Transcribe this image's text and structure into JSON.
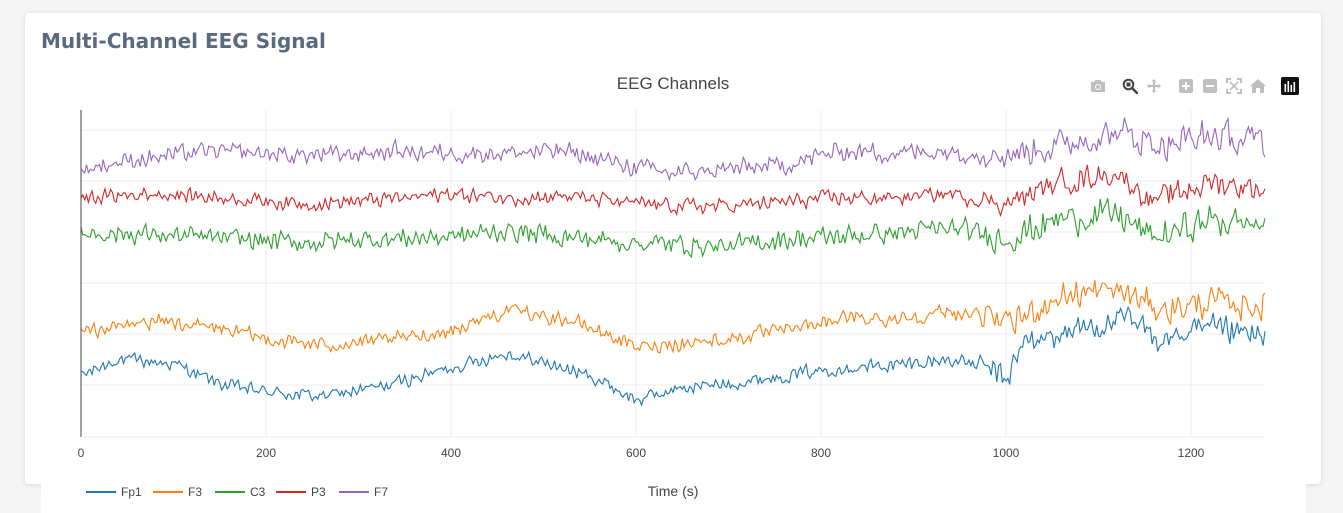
{
  "card": {
    "title": "Multi-Channel EEG Signal"
  },
  "modebar": {
    "buttons": [
      {
        "icon": "camera-icon",
        "label": "Download plot as a png"
      },
      {
        "icon": "zoom-icon",
        "label": "Zoom"
      },
      {
        "icon": "pan-icon",
        "label": "Pan"
      },
      {
        "icon": "zoom-in-icon",
        "label": "Zoom in"
      },
      {
        "icon": "zoom-out-icon",
        "label": "Zoom out"
      },
      {
        "icon": "autoscale-icon",
        "label": "Autoscale"
      },
      {
        "icon": "home-icon",
        "label": "Reset axes"
      },
      {
        "icon": "plotly-logo-icon",
        "label": "Produced with Plotly"
      }
    ]
  },
  "chart_data": {
    "type": "line",
    "title": "EEG Channels",
    "xlabel": "Time (s)",
    "ylabel": "",
    "xlim": [
      0,
      1280
    ],
    "x_ticks": [
      0,
      200,
      400,
      600,
      800,
      1000,
      1200
    ],
    "grid": true,
    "legend_placement": "bottom-left",
    "series": [
      {
        "name": "Fp1",
        "color": "#1f77b4",
        "trend": [
          [
            0,
            -4.4
          ],
          [
            40,
            -3.6
          ],
          [
            100,
            -3.8
          ],
          [
            150,
            -4.8
          ],
          [
            200,
            -5.2
          ],
          [
            260,
            -5.4
          ],
          [
            330,
            -4.9
          ],
          [
            400,
            -4.0
          ],
          [
            460,
            -3.3
          ],
          [
            520,
            -4.0
          ],
          [
            560,
            -4.6
          ],
          [
            600,
            -5.6
          ],
          [
            650,
            -5.0
          ],
          [
            700,
            -4.8
          ],
          [
            760,
            -4.4
          ],
          [
            820,
            -4.0
          ],
          [
            880,
            -3.9
          ],
          [
            940,
            -3.6
          ],
          [
            980,
            -4.0
          ],
          [
            1000,
            -4.6
          ],
          [
            1020,
            -2.8
          ],
          [
            1080,
            -2.1
          ],
          [
            1130,
            -1.7
          ],
          [
            1170,
            -2.6
          ],
          [
            1220,
            -2.2
          ],
          [
            1280,
            -2.6
          ]
        ],
        "amp": [
          [
            0,
            0.35
          ],
          [
            950,
            0.4
          ],
          [
            1000,
            0.75
          ],
          [
            1280,
            0.9
          ]
        ]
      },
      {
        "name": "F3",
        "color": "#ff7f0e",
        "trend": [
          [
            0,
            -2.3
          ],
          [
            80,
            -1.7
          ],
          [
            150,
            -2.1
          ],
          [
            200,
            -2.6
          ],
          [
            260,
            -2.9
          ],
          [
            330,
            -2.7
          ],
          [
            400,
            -2.2
          ],
          [
            460,
            -1.2
          ],
          [
            520,
            -1.6
          ],
          [
            560,
            -2.2
          ],
          [
            600,
            -3.0
          ],
          [
            650,
            -2.8
          ],
          [
            700,
            -2.6
          ],
          [
            760,
            -2.2
          ],
          [
            820,
            -1.6
          ],
          [
            880,
            -1.6
          ],
          [
            940,
            -1.3
          ],
          [
            980,
            -1.4
          ],
          [
            1000,
            -2.0
          ],
          [
            1060,
            -0.5
          ],
          [
            1120,
            -0.2
          ],
          [
            1170,
            -1.2
          ],
          [
            1220,
            -0.8
          ],
          [
            1280,
            -1.0
          ]
        ],
        "amp": [
          [
            0,
            0.4
          ],
          [
            950,
            0.45
          ],
          [
            1000,
            0.8
          ],
          [
            1280,
            0.9
          ]
        ]
      },
      {
        "name": "C3",
        "color": "#2ca02c",
        "trend": [
          [
            0,
            2.6
          ],
          [
            80,
            2.5
          ],
          [
            160,
            2.3
          ],
          [
            240,
            2.1
          ],
          [
            320,
            2.3
          ],
          [
            400,
            2.4
          ],
          [
            460,
            2.7
          ],
          [
            520,
            2.4
          ],
          [
            600,
            2.1
          ],
          [
            660,
            2.0
          ],
          [
            700,
            1.9
          ],
          [
            760,
            2.3
          ],
          [
            820,
            2.4
          ],
          [
            880,
            2.6
          ],
          [
            940,
            2.8
          ],
          [
            1000,
            2.3
          ],
          [
            1060,
            3.3
          ],
          [
            1120,
            3.5
          ],
          [
            1160,
            2.3
          ],
          [
            1220,
            3.2
          ],
          [
            1280,
            3.0
          ]
        ],
        "amp": [
          [
            0,
            0.55
          ],
          [
            950,
            0.6
          ],
          [
            1000,
            0.85
          ],
          [
            1280,
            0.95
          ]
        ]
      },
      {
        "name": "P3",
        "color": "#d62728",
        "trend": [
          [
            0,
            4.3
          ],
          [
            80,
            4.5
          ],
          [
            160,
            4.3
          ],
          [
            240,
            4.0
          ],
          [
            320,
            4.2
          ],
          [
            400,
            4.5
          ],
          [
            460,
            4.3
          ],
          [
            520,
            4.4
          ],
          [
            600,
            4.0
          ],
          [
            660,
            3.9
          ],
          [
            700,
            3.9
          ],
          [
            760,
            4.1
          ],
          [
            820,
            4.3
          ],
          [
            880,
            4.3
          ],
          [
            940,
            4.5
          ],
          [
            1000,
            4.0
          ],
          [
            1060,
            5.1
          ],
          [
            1120,
            5.5
          ],
          [
            1160,
            4.1
          ],
          [
            1220,
            5.1
          ],
          [
            1280,
            4.7
          ]
        ],
        "amp": [
          [
            0,
            0.4
          ],
          [
            950,
            0.45
          ],
          [
            1000,
            0.65
          ],
          [
            1280,
            0.8
          ]
        ]
      },
      {
        "name": "F7",
        "color": "#9467bd",
        "trend": [
          [
            0,
            5.7
          ],
          [
            60,
            6.2
          ],
          [
            140,
            6.6
          ],
          [
            220,
            6.4
          ],
          [
            280,
            6.4
          ],
          [
            340,
            6.6
          ],
          [
            400,
            6.5
          ],
          [
            460,
            6.5
          ],
          [
            520,
            6.6
          ],
          [
            560,
            6.2
          ],
          [
            600,
            5.8
          ],
          [
            640,
            5.5
          ],
          [
            700,
            5.7
          ],
          [
            760,
            5.9
          ],
          [
            820,
            6.6
          ],
          [
            880,
            6.5
          ],
          [
            940,
            6.6
          ],
          [
            1000,
            6.4
          ],
          [
            1060,
            6.9
          ],
          [
            1120,
            7.5
          ],
          [
            1170,
            6.9
          ],
          [
            1220,
            7.3
          ],
          [
            1280,
            7.0
          ]
        ],
        "amp": [
          [
            0,
            0.5
          ],
          [
            950,
            0.55
          ],
          [
            1000,
            0.8
          ],
          [
            1280,
            1.0
          ]
        ]
      }
    ]
  }
}
